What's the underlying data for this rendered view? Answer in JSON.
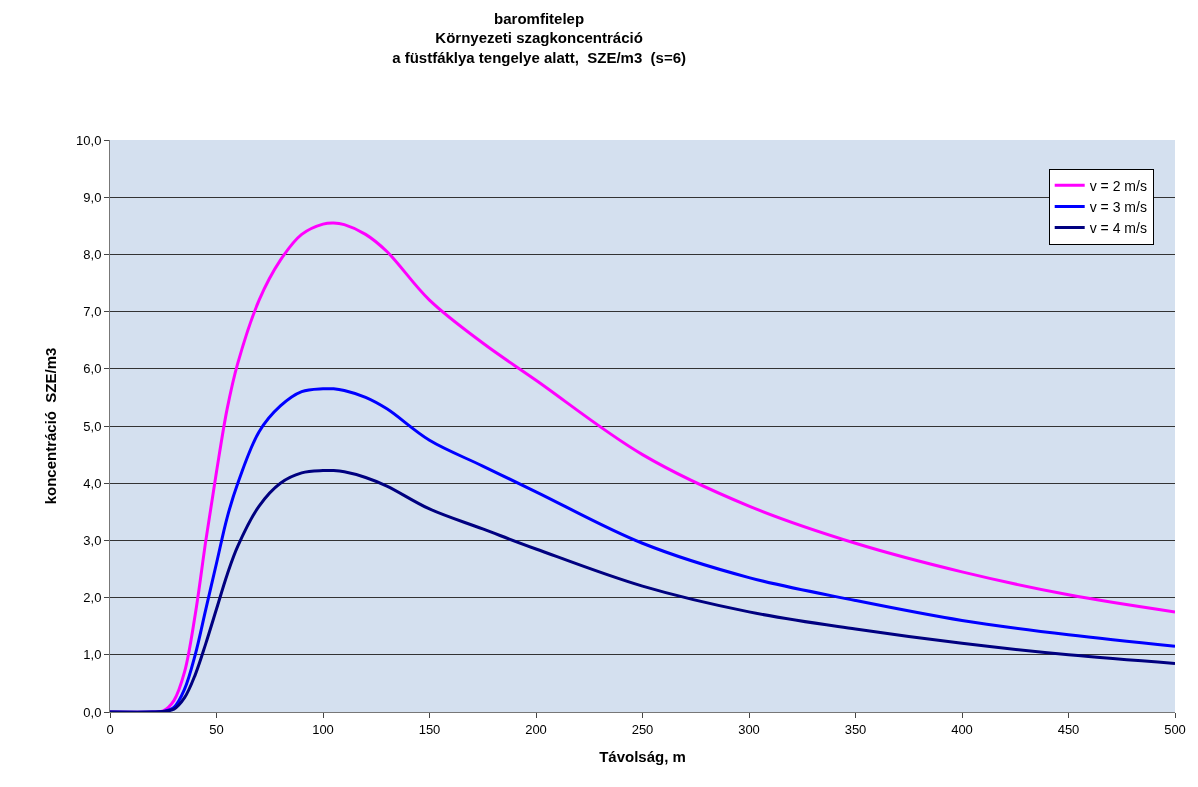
{
  "chart_data": {
    "type": "line",
    "title": "baromfitelep\nKörnyezeti szagkoncentráció\na füstfáklya tengelye alatt,  SZE/m3  (s=6)",
    "xlabel": "Távolság, m",
    "ylabel": "koncentráció  SZE/m3",
    "x": [
      0,
      20,
      25,
      30,
      35,
      40,
      45,
      50,
      55,
      60,
      70,
      80,
      90,
      100,
      105,
      110,
      120,
      130,
      150,
      175,
      200,
      250,
      300,
      350,
      400,
      450,
      500
    ],
    "series": [
      {
        "name": "v = 2 m/s",
        "color": "#ff00ff",
        "values": [
          0,
          0,
          0.02,
          0.2,
          0.7,
          1.7,
          3.0,
          4.2,
          5.3,
          6.1,
          7.2,
          7.9,
          8.35,
          8.53,
          8.55,
          8.52,
          8.35,
          8.05,
          7.2,
          6.45,
          5.8,
          4.5,
          3.6,
          2.95,
          2.45,
          2.05,
          1.75
        ]
      },
      {
        "name": "v = 3 m/s",
        "color": "#0000ff",
        "values": [
          0,
          0,
          0.01,
          0.08,
          0.4,
          1.0,
          1.8,
          2.6,
          3.4,
          4.0,
          4.9,
          5.35,
          5.6,
          5.65,
          5.65,
          5.62,
          5.5,
          5.3,
          4.75,
          4.3,
          3.85,
          2.95,
          2.35,
          1.95,
          1.6,
          1.35,
          1.15
        ]
      },
      {
        "name": "v = 4 m/s",
        "color": "#000080",
        "values": [
          0,
          0,
          0.01,
          0.05,
          0.25,
          0.65,
          1.2,
          1.8,
          2.4,
          2.9,
          3.6,
          4.0,
          4.18,
          4.22,
          4.22,
          4.2,
          4.1,
          3.95,
          3.55,
          3.2,
          2.85,
          2.2,
          1.75,
          1.45,
          1.2,
          1.0,
          0.85
        ]
      }
    ],
    "xlim": [
      0,
      500
    ],
    "xticks": [
      0,
      50,
      100,
      150,
      200,
      250,
      300,
      350,
      400,
      450,
      500
    ],
    "ylim": [
      0,
      10
    ],
    "yticks": [
      {
        "value": 0,
        "label": "0,0"
      },
      {
        "value": 1,
        "label": "1,0"
      },
      {
        "value": 2,
        "label": "2,0"
      },
      {
        "value": 3,
        "label": "3,0"
      },
      {
        "value": 4,
        "label": "4,0"
      },
      {
        "value": 5,
        "label": "5,0"
      },
      {
        "value": 6,
        "label": "6,0"
      },
      {
        "value": 7,
        "label": "7,0"
      },
      {
        "value": 8,
        "label": "8,0"
      },
      {
        "value": 9,
        "label": "9,0"
      },
      {
        "value": 10,
        "label": "10,0"
      }
    ],
    "grid": "y",
    "legend": "top right",
    "marker": "none",
    "line_style": "solid"
  }
}
